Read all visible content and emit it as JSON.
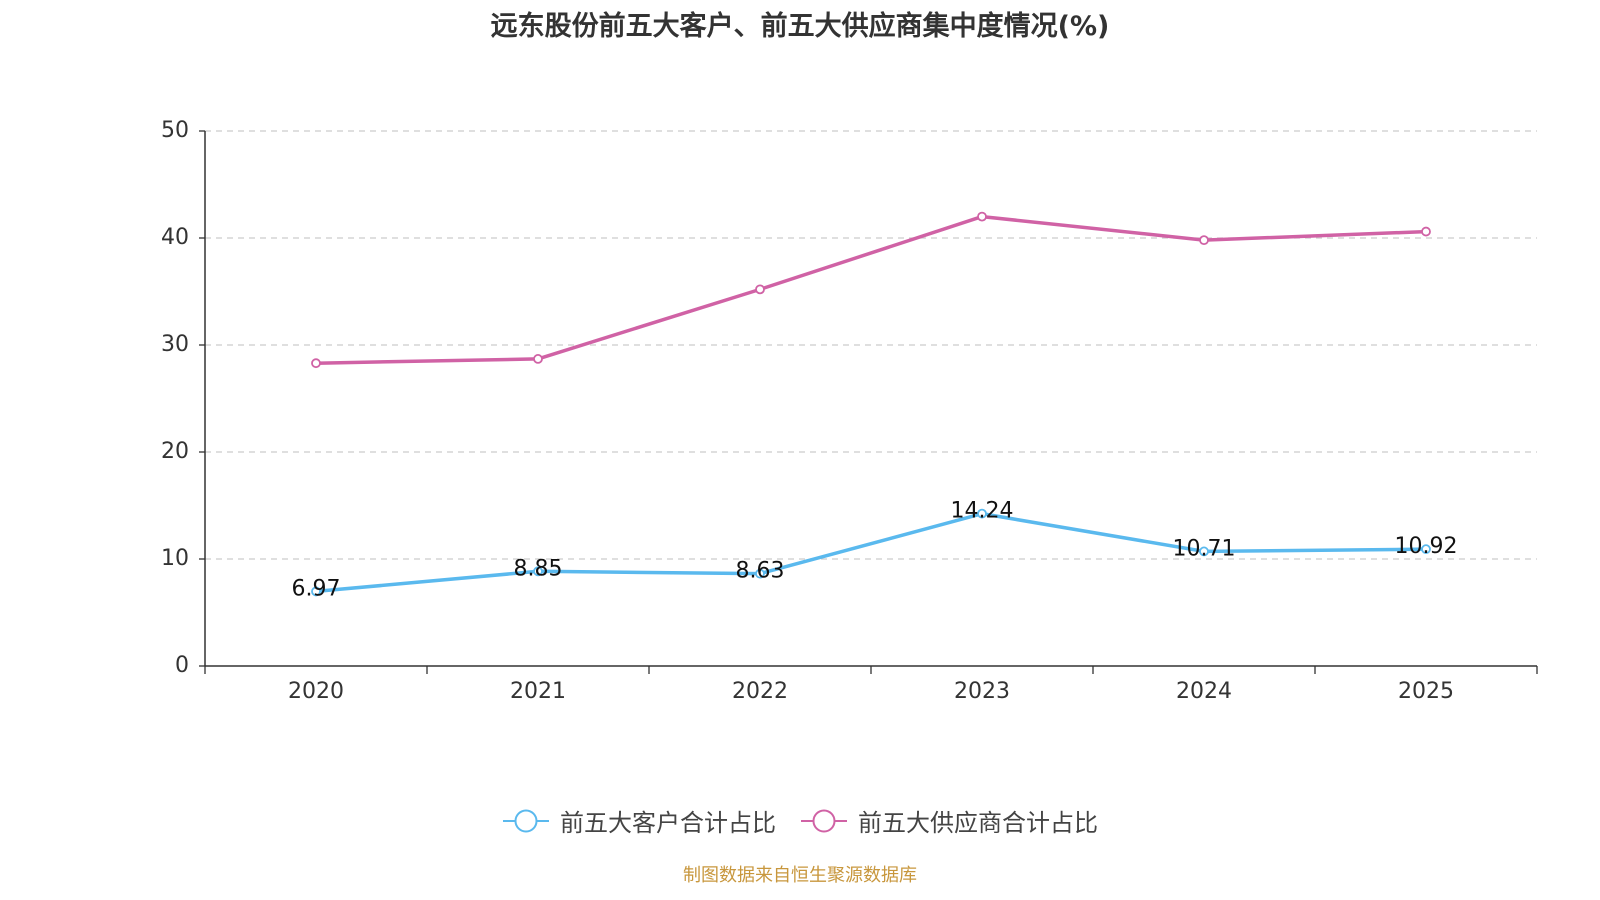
{
  "chart_data": {
    "type": "line",
    "title": "远东股份前五大客户、前五大供应商集中度情况(%)",
    "xlabel": "",
    "ylabel": "",
    "categories": [
      "2020",
      "2021",
      "2022",
      "2023",
      "2024",
      "2025"
    ],
    "ylim": [
      0,
      50
    ],
    "yticks": [
      0,
      10,
      20,
      30,
      40,
      50
    ],
    "grid": true,
    "legend": "bottom-center",
    "series": [
      {
        "name": "前五大客户合计占比",
        "color": "#5ab9ee",
        "values": [
          6.97,
          8.85,
          8.63,
          14.24,
          10.71,
          10.92
        ],
        "show_labels": true
      },
      {
        "name": "前五大供应商合计占比",
        "color": "#d062a5",
        "values": [
          28.3,
          28.7,
          35.2,
          42.0,
          39.8,
          40.6
        ],
        "show_labels": false
      }
    ]
  },
  "source": "制图数据来自恒生聚源数据库"
}
